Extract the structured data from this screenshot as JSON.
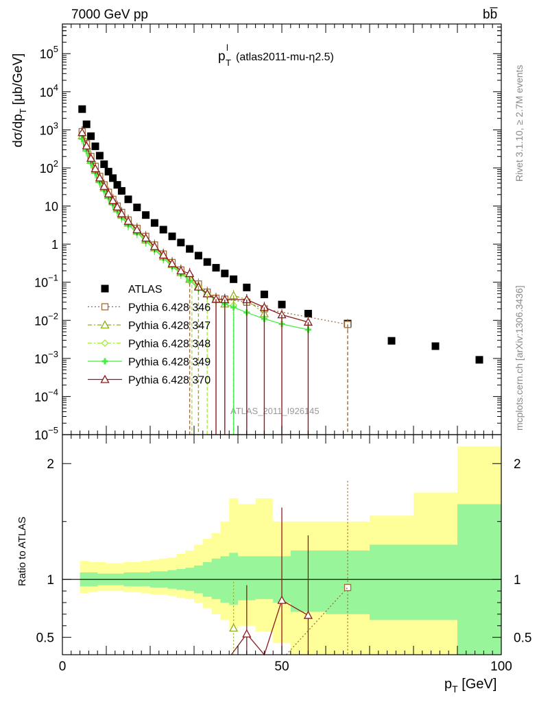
{
  "header": {
    "energy_label": "7000 GeV pp",
    "process_label": "bb̅",
    "plot_title_main": "p",
    "plot_title_sup": "l",
    "plot_title_sub": "T",
    "plot_title_rest": "(atlas2011-mu-η2.5)",
    "side_label_top": "Rivet 3.1.10, ≥ 2.7M events",
    "side_label_bottom": "mcplots.cern.ch [arXiv:1306.3436]",
    "watermark": "ATLAS_2011_I926145"
  },
  "colors": {
    "atlas": "#000000",
    "p346": "#a06a32",
    "p347": "#8fae1a",
    "p348": "#a4e83a",
    "p349": "#44ee44",
    "p370": "#8b1a1a",
    "band_outer": "#ffff99",
    "band_inner": "#99f599"
  },
  "chart_data": [
    {
      "type": "scatter",
      "panel": "main",
      "ylabel": "dσ/dp_T [μb/GeV]",
      "yscale": "log",
      "ylim": [
        1e-05,
        600000
      ],
      "xlim": [
        0,
        100
      ],
      "y_tick_labels": [
        "10^5",
        "10^4",
        "10^3",
        "10^2",
        "10",
        "1",
        "10^-1",
        "10^-2",
        "10^-3",
        "10^-4",
        "10^-5"
      ],
      "legend_position": "middle-left",
      "bin_edges": [
        4,
        5,
        6,
        7,
        8,
        9,
        10,
        11,
        12,
        13,
        14,
        16,
        18,
        20,
        22,
        24,
        26,
        28,
        30,
        32,
        34,
        36,
        38,
        40,
        44,
        48,
        52,
        60,
        70,
        80,
        90,
        100
      ],
      "series": [
        {
          "name": "ATLAS",
          "key": "atlas",
          "marker": "square",
          "line": "none",
          "x": [
            4.5,
            5.5,
            6.5,
            7.5,
            8.5,
            9.5,
            10.5,
            11.5,
            12.5,
            13.5,
            15,
            17,
            19,
            21,
            23,
            25,
            27,
            29,
            31,
            33,
            35,
            37,
            39,
            42,
            46,
            50,
            56,
            65,
            75,
            85,
            95
          ],
          "y": [
            3500,
            1400,
            680,
            370,
            210,
            125,
            80,
            54,
            36,
            25,
            15,
            9.2,
            5.8,
            3.6,
            2.4,
            1.6,
            1.1,
            0.75,
            0.5,
            0.34,
            0.24,
            0.17,
            0.12,
            0.073,
            0.048,
            0.026,
            0.015,
            0.0082,
            0.0029,
            0.0021,
            0.00092
          ]
        },
        {
          "name": "Pythia 6.428 346",
          "key": "p346",
          "marker": "square-open",
          "line": "dotted",
          "x": [
            4.5,
            5.5,
            6.5,
            7.5,
            8.5,
            9.5,
            10.5,
            11.5,
            12.5,
            13.5,
            15,
            17,
            19,
            21,
            23,
            25,
            27,
            29,
            31,
            33,
            35,
            37,
            42,
            46,
            65
          ],
          "y": [
            900,
            430,
            200,
            110,
            60,
            36,
            23,
            15,
            10,
            6.8,
            4.3,
            2.6,
            1.6,
            0.95,
            0.55,
            0.33,
            0.21,
            0.13,
            0.09,
            0.055,
            0.038,
            0.036,
            0.03,
            0.02,
            0.0078
          ]
        },
        {
          "name": "Pythia 6.428 347",
          "key": "p347",
          "marker": "triangle-open",
          "line": "dashdot",
          "x": [
            4.5,
            5.5,
            6.5,
            7.5,
            8.5,
            9.5,
            10.5,
            11.5,
            12.5,
            13.5,
            15,
            17,
            19,
            21,
            23,
            25,
            27,
            29,
            31,
            33,
            35,
            37,
            39,
            42,
            46
          ],
          "y": [
            700,
            340,
            160,
            88,
            50,
            30,
            19,
            13,
            8.5,
            5.8,
            3.6,
            2.2,
            1.3,
            0.8,
            0.47,
            0.29,
            0.18,
            0.12,
            0.08,
            0.05,
            0.035,
            0.027,
            0.045,
            0.035,
            0.015
          ]
        },
        {
          "name": "Pythia 6.428 348",
          "key": "p348",
          "marker": "diamond-open",
          "line": "dashdot",
          "x": [
            4.5,
            5.5,
            6.5,
            7.5,
            8.5,
            9.5,
            10.5,
            11.5,
            12.5,
            13.5,
            15,
            17,
            19,
            21,
            23,
            25,
            27,
            29,
            31,
            33,
            35,
            37,
            39
          ],
          "y": [
            620,
            300,
            145,
            80,
            45,
            28,
            18,
            12,
            8,
            5.4,
            3.4,
            2.1,
            1.3,
            0.75,
            0.45,
            0.27,
            0.18,
            0.12,
            0.075,
            0.05,
            0.035,
            0.03,
            0.025
          ]
        },
        {
          "name": "Pythia 6.428 349",
          "key": "p349",
          "marker": "cross",
          "line": "solid",
          "x": [
            4.5,
            5.5,
            6.5,
            7.5,
            8.5,
            9.5,
            10.5,
            11.5,
            12.5,
            13.5,
            15,
            17,
            19,
            21,
            23,
            25,
            27,
            29,
            31,
            33,
            35,
            37,
            39,
            42,
            46,
            50,
            56
          ],
          "y": [
            580,
            280,
            135,
            74,
            42,
            26,
            17,
            11,
            7.5,
            5.1,
            3.2,
            2,
            1.2,
            0.72,
            0.43,
            0.26,
            0.17,
            0.11,
            0.07,
            0.048,
            0.034,
            0.027,
            0.022,
            0.016,
            0.011,
            0.008,
            0.0057
          ]
        },
        {
          "name": "Pythia 6.428 370",
          "key": "p370",
          "marker": "triangle-open",
          "line": "solid",
          "x": [
            4.5,
            5.5,
            6.5,
            7.5,
            8.5,
            9.5,
            10.5,
            11.5,
            12.5,
            13.5,
            15,
            17,
            19,
            21,
            23,
            25,
            27,
            29,
            31,
            33,
            35,
            37,
            42,
            46,
            50,
            56
          ],
          "y": [
            850,
            380,
            180,
            96,
            55,
            33,
            21,
            14,
            9.5,
            6.3,
            4,
            2.4,
            1.45,
            0.87,
            0.52,
            0.31,
            0.2,
            0.17,
            0.075,
            0.05,
            0.036,
            0.035,
            0.035,
            0.022,
            0.014,
            0.009
          ]
        }
      ]
    },
    {
      "type": "line",
      "panel": "ratio",
      "ylabel": "Ratio to ATLAS",
      "xlabel": "p_T [GeV]",
      "ylim": [
        0.35,
        2.25
      ],
      "xlim": [
        0,
        100
      ],
      "x_tick_labels": [
        "0",
        "50",
        "100"
      ],
      "y_tick_labels": [
        "0.5",
        "1",
        "2"
      ],
      "band_edges": [
        4,
        6,
        8,
        10,
        12,
        14,
        16,
        18,
        20,
        22,
        24,
        26,
        28,
        30,
        32,
        34,
        36,
        38,
        40,
        44,
        48,
        52,
        60,
        70,
        80,
        90,
        100
      ],
      "band_inner_low": [
        0.94,
        0.94,
        0.95,
        0.95,
        0.95,
        0.94,
        0.94,
        0.94,
        0.93,
        0.93,
        0.92,
        0.91,
        0.9,
        0.88,
        0.85,
        0.83,
        0.8,
        0.78,
        0.82,
        0.83,
        0.8,
        0.72,
        0.7,
        0.65,
        0.65,
        0.35
      ],
      "band_inner_high": [
        1.06,
        1.06,
        1.05,
        1.05,
        1.05,
        1.06,
        1.06,
        1.06,
        1.07,
        1.07,
        1.08,
        1.09,
        1.1,
        1.12,
        1.15,
        1.18,
        1.2,
        1.23,
        1.2,
        1.2,
        1.2,
        1.25,
        1.25,
        1.3,
        1.3,
        1.65
      ],
      "band_outer_low": [
        0.88,
        0.89,
        0.9,
        0.9,
        0.9,
        0.89,
        0.89,
        0.88,
        0.87,
        0.87,
        0.86,
        0.84,
        0.83,
        0.8,
        0.75,
        0.7,
        0.65,
        0.58,
        0.6,
        0.55,
        0.45,
        0.35,
        0.35,
        0.35,
        0.35,
        0.35
      ],
      "band_outer_high": [
        1.16,
        1.15,
        1.15,
        1.14,
        1.14,
        1.15,
        1.15,
        1.16,
        1.17,
        1.18,
        1.19,
        1.22,
        1.25,
        1.3,
        1.35,
        1.4,
        1.5,
        1.7,
        1.65,
        1.7,
        1.5,
        1.5,
        1.5,
        1.55,
        1.75,
        2.15
      ],
      "series": [
        {
          "name": "Pythia 6.428 346",
          "key": "p346",
          "x": [
            65
          ],
          "y": [
            0.93
          ],
          "err_high": [
            1.85
          ],
          "err_low": [
            0.35
          ]
        },
        {
          "name": "Pythia 6.428 347",
          "key": "p347",
          "x": [
            39
          ],
          "y": [
            0.58
          ],
          "err_high": [
            0.98
          ],
          "err_low": [
            0.35
          ]
        },
        {
          "name": "Pythia 6.428 370",
          "key": "p370",
          "x": [
            38.5,
            42,
            46,
            50,
            56
          ],
          "y": [
            0.35,
            0.53,
            0.35,
            0.82,
            0.69
          ],
          "err_high": [
            0.35,
            0.95,
            0.35,
            1.62,
            1.38
          ],
          "err_low": [
            0.35,
            0.35,
            0.35,
            0.35,
            0.35
          ]
        }
      ]
    }
  ]
}
